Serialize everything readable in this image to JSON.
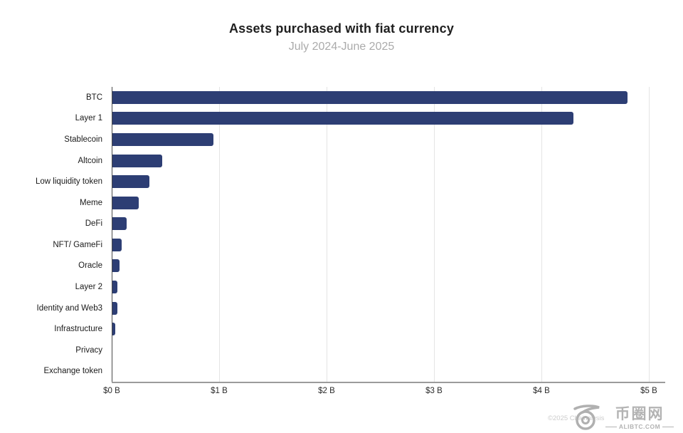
{
  "title": "Assets purchased with fiat currency",
  "subtitle": "July 2024-June 2025",
  "colors": {
    "bar": "#2d3e74",
    "grid": "#e4e4e4",
    "y_axis_line": "#4a4a4a",
    "baseline": "#9b9b9b",
    "title_text": "#1f1f1f",
    "subtitle_text": "#ababab"
  },
  "chart_data": {
    "type": "bar",
    "orientation": "horizontal",
    "title": "Assets purchased with fiat currency",
    "subtitle": "July 2024-June 2025",
    "unit": "USD billions",
    "categories": [
      "BTC",
      "Layer 1",
      "Stablecoin",
      "Altcoin",
      "Low liquidity token",
      "Meme",
      "DeFi",
      "NFT/ GameFi",
      "Oracle",
      "Layer 2",
      "Identity and Web3",
      "Infrastructure",
      "Privacy",
      "Exchange token"
    ],
    "values": [
      4.8,
      4.3,
      0.95,
      0.47,
      0.35,
      0.25,
      0.14,
      0.09,
      0.07,
      0.05,
      0.05,
      0.03,
      0,
      0
    ],
    "xlim": [
      0,
      5
    ],
    "x_ticks": [
      "$0 B",
      "$1 B",
      "$2 B",
      "$3 B",
      "$4 B",
      "$5 B"
    ],
    "x_tick_values": [
      0,
      1,
      2,
      3,
      4,
      5
    ],
    "grid": true,
    "legend": false
  },
  "watermark": {
    "copyright": "©2025 Chainalysis",
    "site_name": "币圈网",
    "site_url": "ALIBTC.COM"
  }
}
